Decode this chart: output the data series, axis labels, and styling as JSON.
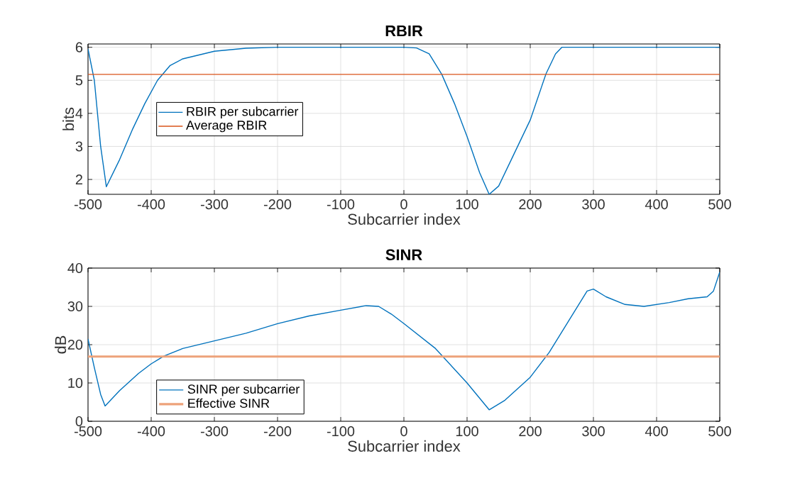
{
  "chart_data": [
    {
      "type": "line",
      "title": "RBIR",
      "xlabel": "Subcarrier index",
      "ylabel": "bits",
      "xlim": [
        -500,
        500
      ],
      "ylim": [
        1.55,
        6.1
      ],
      "xticks": [
        -500,
        -400,
        -300,
        -200,
        -100,
        0,
        100,
        200,
        300,
        400,
        500
      ],
      "yticks": [
        2,
        3,
        4,
        5,
        6
      ],
      "grid": true,
      "legend": "left",
      "line_style": "solid",
      "marker": "none",
      "series": [
        {
          "name": "RBIR per subcarrier",
          "color": "#0072bd",
          "x": [
            -500,
            -490,
            -480,
            -471,
            -450,
            -430,
            -410,
            -390,
            -370,
            -350,
            -300,
            -250,
            -200,
            0,
            20,
            40,
            60,
            80,
            100,
            120,
            135,
            150,
            170,
            200,
            225,
            240,
            250,
            500
          ],
          "values": [
            5.95,
            5.0,
            3.0,
            1.78,
            2.6,
            3.5,
            4.3,
            5.0,
            5.45,
            5.65,
            5.88,
            5.97,
            6.0,
            6.0,
            5.98,
            5.8,
            5.18,
            4.3,
            3.3,
            2.2,
            1.55,
            1.8,
            2.6,
            3.8,
            5.2,
            5.8,
            6.0,
            6.0
          ]
        },
        {
          "name": "Average RBIR",
          "color": "#d95319",
          "x": [
            -500,
            500
          ],
          "values": [
            5.18,
            5.18
          ]
        }
      ]
    },
    {
      "type": "line",
      "title": "SINR",
      "xlabel": "Subcarrier index",
      "ylabel": "dB",
      "xlim": [
        -500,
        500
      ],
      "ylim": [
        0,
        40
      ],
      "xticks": [
        -500,
        -400,
        -300,
        -200,
        -100,
        0,
        100,
        200,
        300,
        400,
        500
      ],
      "yticks": [
        0,
        10,
        20,
        30,
        40
      ],
      "grid": true,
      "legend": "bottom left",
      "line_style": "solid",
      "marker": "none",
      "series": [
        {
          "name": "SINR per subcarrier",
          "color": "#0072bd",
          "x": [
            -500,
            -490,
            -480,
            -473,
            -450,
            -420,
            -400,
            -380,
            -350,
            -300,
            -250,
            -200,
            -150,
            -100,
            -60,
            -40,
            -20,
            0,
            50,
            100,
            135,
            160,
            200,
            230,
            260,
            290,
            300,
            320,
            350,
            380,
            420,
            450,
            480,
            490,
            500
          ],
          "values": [
            21.5,
            14,
            7,
            4,
            8,
            12.5,
            15,
            17,
            19,
            21,
            23,
            25.5,
            27.5,
            29,
            30.2,
            30,
            28,
            25.5,
            19,
            10,
            3,
            5.5,
            11.5,
            18,
            26,
            34,
            34.5,
            32.5,
            30.5,
            30,
            31,
            32,
            32.5,
            34,
            39
          ]
        },
        {
          "name": "Effective SINR",
          "color": "#eda27a",
          "x": [
            -500,
            500
          ],
          "values": [
            16.9,
            16.9
          ]
        }
      ]
    }
  ]
}
